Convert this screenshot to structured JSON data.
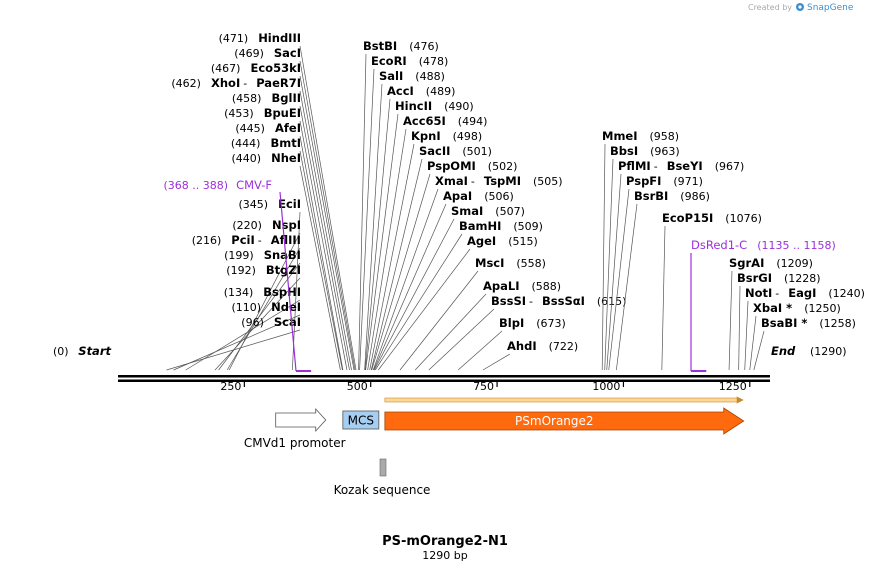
{
  "credit": {
    "prefix": "Created by",
    "brand": "SnapGene"
  },
  "map": {
    "length": 1290,
    "ends": [
      {
        "pos": 0,
        "name": "Start",
        "side": "left"
      },
      {
        "pos": 1290,
        "name": "End",
        "side": "right"
      }
    ],
    "ticks": [
      250,
      500,
      750,
      1000,
      1250
    ]
  },
  "sites": [
    {
      "names": [
        "HindIII"
      ],
      "pos": 471
    },
    {
      "names": [
        "SacI"
      ],
      "pos": 469
    },
    {
      "names": [
        "Eco53kI"
      ],
      "pos": 467
    },
    {
      "names": [
        "XhoI",
        "PaeR7I"
      ],
      "pos": 462
    },
    {
      "names": [
        "BglII"
      ],
      "pos": 458
    },
    {
      "names": [
        "BpuEI"
      ],
      "pos": 453
    },
    {
      "names": [
        "AfeI"
      ],
      "pos": 445
    },
    {
      "names": [
        "BmtI"
      ],
      "pos": 444
    },
    {
      "names": [
        "NheI"
      ],
      "pos": 440
    },
    {
      "names": [
        "EciI"
      ],
      "pos": 345
    },
    {
      "names": [
        "NspI"
      ],
      "pos": 220
    },
    {
      "names": [
        "PciI",
        "AflIII"
      ],
      "pos": 216
    },
    {
      "names": [
        "SnaBI"
      ],
      "pos": 199
    },
    {
      "names": [
        "BtgZI"
      ],
      "pos": 192
    },
    {
      "names": [
        "BspHI"
      ],
      "pos": 134
    },
    {
      "names": [
        "NdeI"
      ],
      "pos": 110
    },
    {
      "names": [
        "ScaI"
      ],
      "pos": 96
    },
    {
      "names": [
        "BstBI"
      ],
      "pos": 476
    },
    {
      "names": [
        "EcoRI"
      ],
      "pos": 478
    },
    {
      "names": [
        "SalI"
      ],
      "pos": 488
    },
    {
      "names": [
        "AccI"
      ],
      "pos": 489
    },
    {
      "names": [
        "HincII"
      ],
      "pos": 490
    },
    {
      "names": [
        "Acc65I"
      ],
      "pos": 494
    },
    {
      "names": [
        "KpnI"
      ],
      "pos": 498
    },
    {
      "names": [
        "SacII"
      ],
      "pos": 501
    },
    {
      "names": [
        "PspOMI"
      ],
      "pos": 502
    },
    {
      "names": [
        "XmaI",
        "TspMI"
      ],
      "pos": 505
    },
    {
      "names": [
        "ApaI"
      ],
      "pos": 506
    },
    {
      "names": [
        "SmaI"
      ],
      "pos": 507
    },
    {
      "names": [
        "BamHI"
      ],
      "pos": 509
    },
    {
      "names": [
        "AgeI"
      ],
      "pos": 515
    },
    {
      "names": [
        "MscI"
      ],
      "pos": 558
    },
    {
      "names": [
        "ApaLI"
      ],
      "pos": 588
    },
    {
      "names": [
        "BssSI",
        "BssSαI"
      ],
      "pos": 615
    },
    {
      "names": [
        "BlpI"
      ],
      "pos": 673
    },
    {
      "names": [
        "AhdI"
      ],
      "pos": 722
    },
    {
      "names": [
        "MmeI"
      ],
      "pos": 958
    },
    {
      "names": [
        "BbsI"
      ],
      "pos": 963
    },
    {
      "names": [
        "PflMI",
        "BseYI"
      ],
      "pos": 967
    },
    {
      "names": [
        "PspFI"
      ],
      "pos": 971
    },
    {
      "names": [
        "BsrBI"
      ],
      "pos": 986
    },
    {
      "names": [
        "EcoP15I"
      ],
      "pos": 1076
    },
    {
      "names": [
        "SgrAI"
      ],
      "pos": 1209
    },
    {
      "names": [
        "BsrGI"
      ],
      "pos": 1228
    },
    {
      "names": [
        "NotI",
        "EagI"
      ],
      "pos": 1240
    },
    {
      "names": [
        "XbaI *"
      ],
      "pos": 1250
    },
    {
      "names": [
        "BsaBI *"
      ],
      "pos": 1258
    }
  ],
  "primers": [
    {
      "name": "CMV-F",
      "range": "(368 .. 388)",
      "start": 368,
      "end": 388,
      "direction": "forward"
    },
    {
      "name": "DsRed1-C",
      "range": "(1135 .. 1158)",
      "start": 1135,
      "end": 1158,
      "direction": "forward"
    }
  ],
  "features": [
    {
      "name": "CMVd1 promoter",
      "start": 312,
      "end": 411,
      "color": "#ffffff",
      "type": "promoter"
    },
    {
      "name": "MCS",
      "start": 435,
      "end": 522,
      "color": "#a6cef0",
      "type": "box"
    },
    {
      "name": "PSmOrange2",
      "start": 528,
      "end": 1238,
      "color": "#ff6a0e",
      "type": "cds"
    },
    {
      "name": "Kozak sequence",
      "start": 522,
      "end": 532,
      "color": "#aaaaaa",
      "type": "small"
    }
  ],
  "title": "PS-mOrange2-N1",
  "subtitle": "1290 bp",
  "colors": {
    "primer": "#9b30d9",
    "cds": "#ff6a0e",
    "mcs": "#a6cef0",
    "brand": "#3b8fd0"
  }
}
